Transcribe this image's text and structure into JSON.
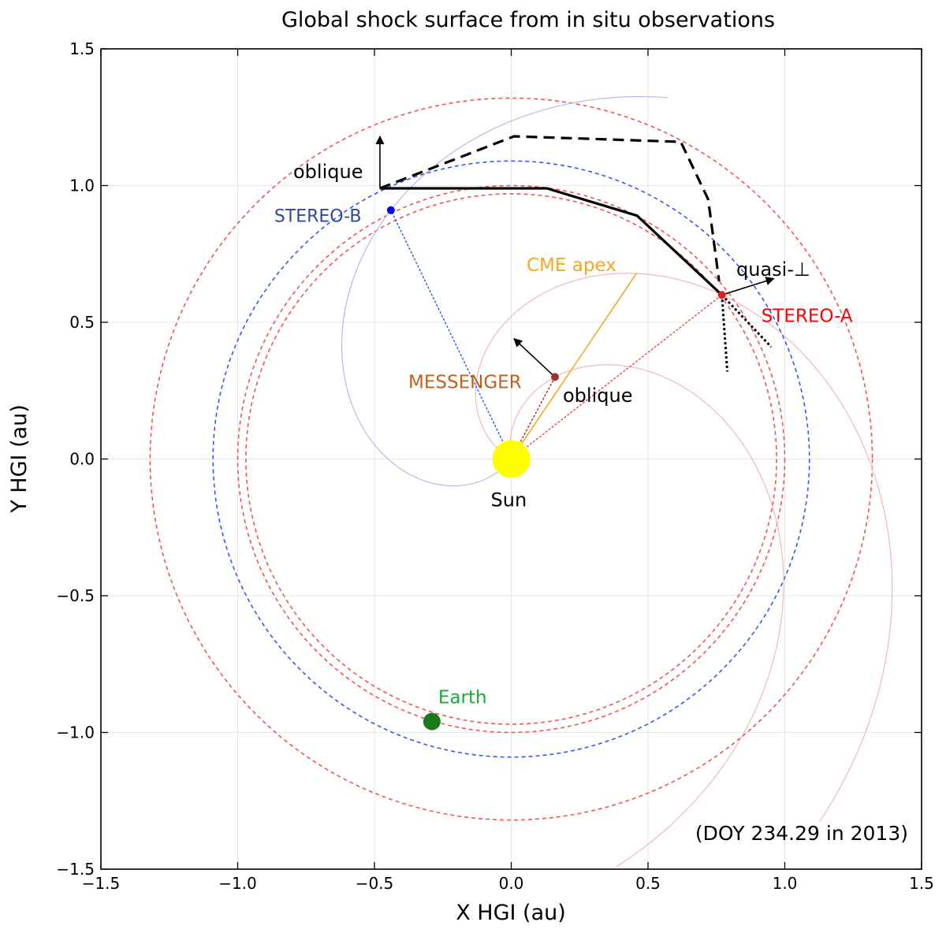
{
  "chart_data": {
    "type": "scatter",
    "title": "Global shock surface from in situ observations",
    "xlabel": "X HGI (au)",
    "ylabel": "Y HGI (au)",
    "xlim": [
      -1.5,
      1.5
    ],
    "ylim": [
      -1.5,
      1.5
    ],
    "grid": true,
    "x_ticks": [
      -1.5,
      -1.0,
      -0.5,
      0.0,
      0.5,
      1.0,
      1.5
    ],
    "y_ticks": [
      -1.5,
      -1.0,
      -0.5,
      0.0,
      0.5,
      1.0,
      1.5
    ],
    "x_tick_labels": [
      "−1.5",
      "−1.0",
      "−0.5",
      "0.0",
      "0.5",
      "1.0",
      "1.5"
    ],
    "y_tick_labels": [
      "−1.5",
      "−1.0",
      "−0.5",
      "0.0",
      "0.5",
      "1.0",
      "1.5"
    ],
    "annotation": "(DOY 234.29 in 2013)",
    "bodies": [
      {
        "name": "Sun",
        "label": "Sun",
        "x": 0.0,
        "y": 0.0,
        "color": "#ffff00",
        "marker_size": 24
      },
      {
        "name": "STEREO-B",
        "label": "STEREO-B",
        "x": -0.44,
        "y": 0.91,
        "color": "#0000ff",
        "label_color": "#2a4aa0",
        "marker_size": 5
      },
      {
        "name": "STEREO-A",
        "label": "STEREO-A",
        "x": 0.77,
        "y": 0.6,
        "color": "#dd2222",
        "label_color": "#ff0000",
        "marker_size": 5
      },
      {
        "name": "MESSENGER",
        "label": "MESSENGER",
        "x": 0.16,
        "y": 0.3,
        "color": "#a03030",
        "label_color": "#c0601a",
        "marker_size": 5
      },
      {
        "name": "Earth",
        "label": "Earth",
        "x": -0.29,
        "y": -0.96,
        "color": "#1a7a1a",
        "label_color": "#1aaa33",
        "marker_size": 11
      }
    ],
    "orbits": [
      {
        "name": "STEREO-B orbit",
        "radius": 1.09,
        "color": "#3355ff"
      },
      {
        "name": "Earth orbit inner",
        "radius": 0.97,
        "color": "#ee5555"
      },
      {
        "name": "Earth orbit outer",
        "radius": 1.0,
        "color": "#ee5555"
      },
      {
        "name": "STEREO-A orbit",
        "radius": 1.32,
        "color": "#ee5555"
      }
    ],
    "cme_apex": {
      "label": "CME apex",
      "color": "#f5a623",
      "direction_deg": 56,
      "length": 0.82
    },
    "shock_solid": {
      "x": [
        -0.48,
        0.13,
        0.46,
        0.77
      ],
      "y": [
        0.99,
        0.99,
        0.89,
        0.6
      ]
    },
    "shock_dashed": {
      "x": [
        -0.48,
        0.01,
        0.62,
        0.72,
        0.76
      ],
      "y": [
        0.99,
        1.18,
        1.16,
        0.95,
        0.65
      ]
    },
    "shock_normals": [
      {
        "label": "oblique",
        "at": "STEREO-B side",
        "x0": -0.48,
        "y0": 0.99,
        "dx": 0.0,
        "dy": 0.19
      },
      {
        "label": "oblique",
        "at": "MESSENGER",
        "x0": 0.16,
        "y0": 0.3,
        "dx": -0.15,
        "dy": 0.14
      },
      {
        "label": "quasi-⊥",
        "at": "STEREO-A",
        "x0": 0.77,
        "y0": 0.6,
        "dx": 0.19,
        "dy": 0.06
      }
    ],
    "stereo_a_local_surface": {
      "line1": {
        "x": [
          0.77,
          0.79
        ],
        "y": [
          0.6,
          0.32
        ]
      },
      "line2": {
        "x": [
          0.77,
          0.95
        ],
        "y": [
          0.6,
          0.41
        ]
      }
    },
    "parker_spirals": [
      {
        "name": "STEREO-B field line",
        "color": "#b8b8ee"
      },
      {
        "name": "STEREO-A field line",
        "color": "#f2b8b8"
      }
    ]
  }
}
